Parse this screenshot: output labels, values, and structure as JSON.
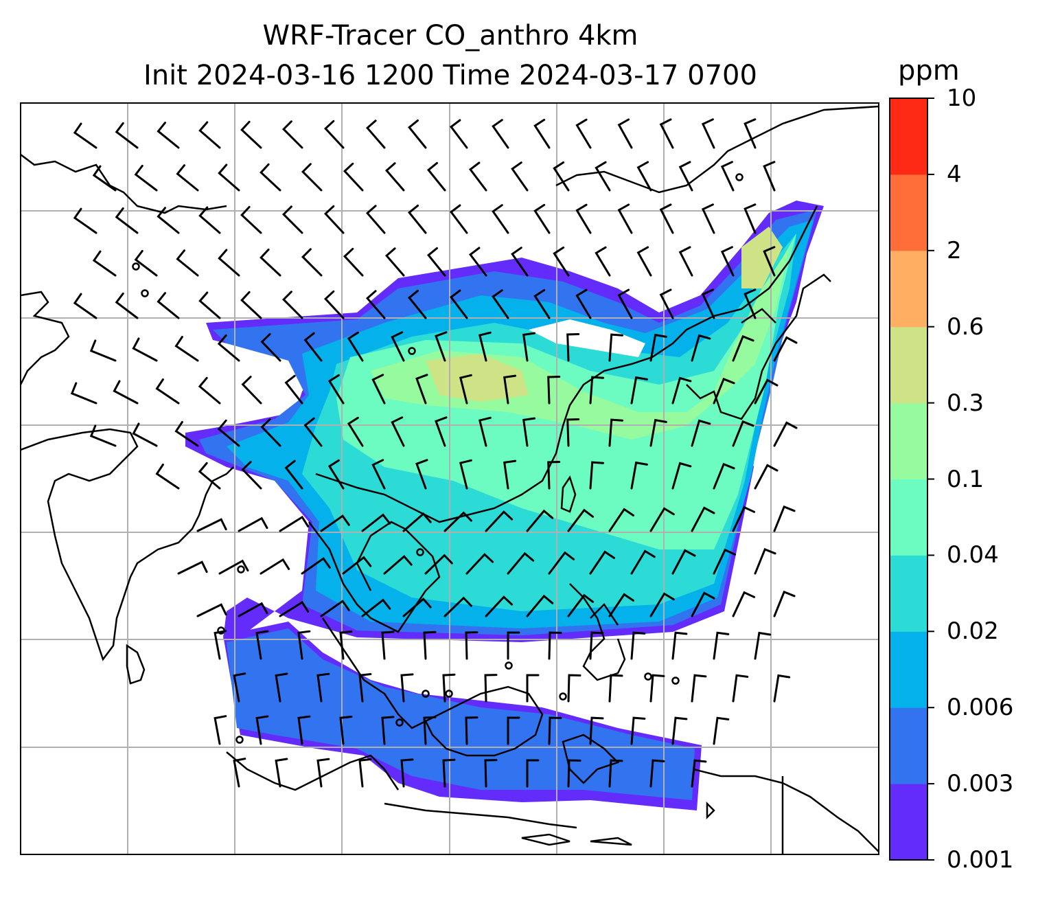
{
  "title_line1": "WRF-Tracer CO_anthro 4km",
  "title_line2": "Init 2024-03-16 1200 Time 2024-03-17 0700",
  "colorbar": {
    "units": "ppm",
    "levels": [
      "0.001",
      "0.003",
      "0.006",
      "0.02",
      "0.04",
      "0.1",
      "0.3",
      "0.6",
      "2",
      "4",
      "10"
    ],
    "colors": [
      "#642cfb",
      "#3274f0",
      "#04b1ea",
      "#2cdad6",
      "#6cfbc0",
      "#96fb9e",
      "#cde386",
      "#ffae62",
      "#ff6d38",
      "#ff2a16"
    ]
  },
  "map_style": {
    "coastline_color": "#000000",
    "gridline_color": "#b0b0b0",
    "wind_barb_color": "#000000"
  }
}
